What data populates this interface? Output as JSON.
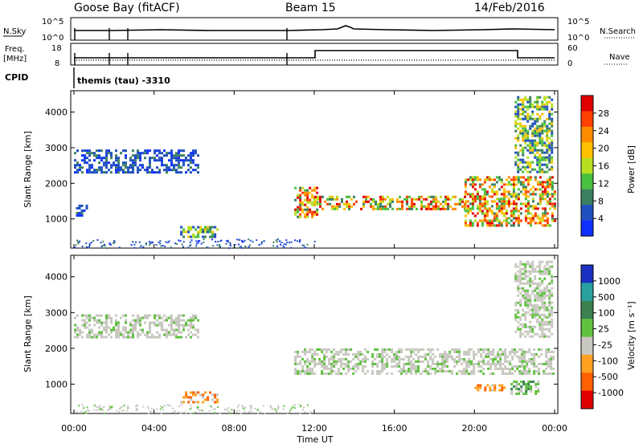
{
  "header": {
    "station": "Goose Bay (fitACF)",
    "beam": "Beam 15",
    "date": "14/Feb/2016"
  },
  "top_panels": {
    "nsky_label": "N.Sky",
    "nsky_ticks": [
      "10^5",
      "10^0"
    ],
    "nsearch_label": "N.Search",
    "nsearch_ticks": [
      "10^5",
      "10^0"
    ],
    "freq_label_1": "Freq.",
    "freq_label_2": "[MHz]",
    "freq_ticks": [
      "18",
      "8"
    ],
    "nave_label": "Nave",
    "nave_ticks": [
      "60",
      "0"
    ],
    "cpid_label": "CPID",
    "cpid_value": "themis (tau) -3310"
  },
  "chart_data": [
    {
      "type": "heatmap",
      "name": "power",
      "ylabel": "Slant Range [km]",
      "xlabel": "Time UT",
      "x_ticks": [
        "00:00",
        "04:00",
        "08:00",
        "12:00",
        "16:00",
        "20:00",
        "00:00"
      ],
      "y_ticks": [
        "1000",
        "2000",
        "3000",
        "4000"
      ],
      "ylim_km": [
        180,
        4600
      ],
      "xlim_hours": [
        0,
        24
      ],
      "colorbar_label": "Power [dB]",
      "colorbar_ticks": [
        "28",
        "24",
        "20",
        "16",
        "12",
        "8",
        "4"
      ],
      "colorbar_colors": [
        "#e00000",
        "#ff4000",
        "#ff8c00",
        "#ffc000",
        "#b8e020",
        "#48c040",
        "#3c8060",
        "#2050c0",
        "#1030ff"
      ],
      "regions": [
        {
          "start_h": 0.0,
          "end_h": 6.2,
          "range_km": [
            2300,
            2950
          ],
          "level": "low"
        },
        {
          "start_h": 0.1,
          "end_h": 0.6,
          "range_km": [
            1100,
            1400
          ],
          "level": "low"
        },
        {
          "start_h": 5.3,
          "end_h": 7.2,
          "range_km": [
            500,
            800
          ],
          "level": "mid"
        },
        {
          "start_h": 11.0,
          "end_h": 12.2,
          "range_km": [
            1050,
            1900
          ],
          "level": "high"
        },
        {
          "start_h": 12.0,
          "end_h": 19.5,
          "range_km": [
            1300,
            1650
          ],
          "level": "high"
        },
        {
          "start_h": 19.5,
          "end_h": 24.0,
          "range_km": [
            800,
            2200
          ],
          "level": "high"
        },
        {
          "start_h": 22.0,
          "end_h": 23.9,
          "range_km": [
            2300,
            4450
          ],
          "level": "mid"
        }
      ]
    },
    {
      "type": "heatmap",
      "name": "velocity",
      "ylabel": "Slant Range [km]",
      "xlabel": "Time UT",
      "x_ticks": [
        "00:00",
        "04:00",
        "08:00",
        "12:00",
        "16:00",
        "20:00",
        "00:00"
      ],
      "y_ticks": [
        "1000",
        "2000",
        "3000",
        "4000"
      ],
      "ylim_km": [
        180,
        4600
      ],
      "xlim_hours": [
        0,
        24
      ],
      "colorbar_label": "Velocity [m s⁻¹]",
      "colorbar_ticks": [
        "1000",
        "500",
        "100",
        "25",
        "-25",
        "-100",
        "-500",
        "-1000"
      ],
      "colorbar_colors": [
        "#1a30c0",
        "#2aa0a0",
        "#3c8050",
        "#60c040",
        "#c8c8c0",
        "#ffa020",
        "#ff6000",
        "#e00000"
      ],
      "regions": [
        {
          "start_h": 0.0,
          "end_h": 6.2,
          "range_km": [
            2300,
            2950
          ],
          "level": "gray"
        },
        {
          "start_h": 11.0,
          "end_h": 24.0,
          "range_km": [
            1300,
            2000
          ],
          "level": "gray"
        },
        {
          "start_h": 5.3,
          "end_h": 7.2,
          "range_km": [
            500,
            800
          ],
          "level": "orange"
        },
        {
          "start_h": 20.0,
          "end_h": 21.5,
          "range_km": [
            800,
            1000
          ],
          "level": "orange"
        },
        {
          "start_h": 21.8,
          "end_h": 23.2,
          "range_km": [
            750,
            1100
          ],
          "level": "green"
        },
        {
          "start_h": 22.0,
          "end_h": 23.9,
          "range_km": [
            2300,
            4450
          ],
          "level": "gray"
        }
      ]
    }
  ]
}
